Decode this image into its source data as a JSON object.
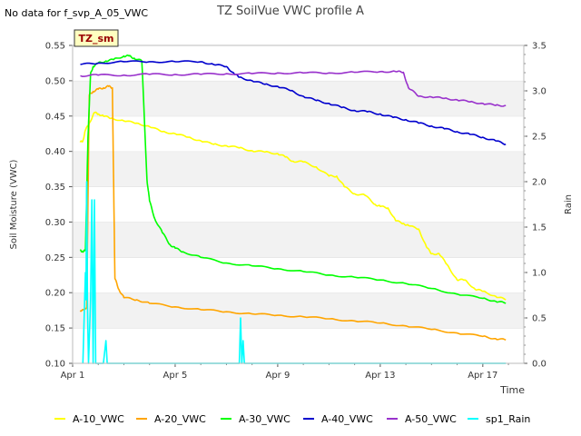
{
  "chart_data": {
    "type": "line",
    "title": "TZ SoilVue VWC profile A",
    "note": "No data for f_svp_A_05_VWC",
    "site_badge": "TZ_sm",
    "xlabel": "Time",
    "ylabel_left": "Soil Moisture (VWC)",
    "ylabel_right": "Rain",
    "xlim": [
      1,
      18.6
    ],
    "ylim_left": [
      0.1,
      0.55
    ],
    "ylim_right": [
      0.0,
      3.5
    ],
    "x_ticks": [
      {
        "value": 1,
        "label": "Apr 1"
      },
      {
        "value": 5,
        "label": "Apr 5"
      },
      {
        "value": 9,
        "label": "Apr 9"
      },
      {
        "value": 13,
        "label": "Apr 13"
      },
      {
        "value": 17,
        "label": "Apr 17"
      }
    ],
    "y_ticks_left": [
      {
        "value": 0.1,
        "label": "0.10"
      },
      {
        "value": 0.15,
        "label": "0.15"
      },
      {
        "value": 0.2,
        "label": "0.20"
      },
      {
        "value": 0.25,
        "label": "0.25"
      },
      {
        "value": 0.3,
        "label": "0.30"
      },
      {
        "value": 0.35,
        "label": "0.35"
      },
      {
        "value": 0.4,
        "label": "0.40"
      },
      {
        "value": 0.45,
        "label": "0.45"
      },
      {
        "value": 0.5,
        "label": "0.50"
      },
      {
        "value": 0.55,
        "label": "0.55"
      }
    ],
    "y_ticks_right": [
      {
        "value": 0.0,
        "label": "0.0"
      },
      {
        "value": 0.5,
        "label": "0.5"
      },
      {
        "value": 1.0,
        "label": "1.0"
      },
      {
        "value": 1.5,
        "label": "1.5"
      },
      {
        "value": 2.0,
        "label": "2.0"
      },
      {
        "value": 2.5,
        "label": "2.5"
      },
      {
        "value": 3.0,
        "label": "3.0"
      },
      {
        "value": 3.5,
        "label": "3.5"
      }
    ],
    "grid": "horizontal bands",
    "legend_position": "bottom",
    "series": [
      {
        "name": "A-10_VWC",
        "color": "#ffff00",
        "axis": "left",
        "x": [
          1.3,
          1.4,
          1.5,
          1.65,
          1.85,
          2.0,
          2.2,
          2.5,
          3.0,
          3.5,
          4.0,
          4.5,
          5.0,
          5.5,
          6.0,
          6.5,
          7.0,
          7.5,
          8.0,
          8.5,
          9.0,
          9.3,
          9.6,
          10.0,
          10.5,
          11.0,
          11.3,
          11.6,
          12.0,
          12.4,
          12.8,
          13.0,
          13.3,
          13.6,
          13.9,
          14.1,
          14.5,
          14.8,
          15.0,
          15.3,
          15.6,
          16.0,
          16.3,
          16.7,
          17.0,
          17.5,
          17.9
        ],
        "values": [
          0.413,
          0.415,
          0.43,
          0.44,
          0.455,
          0.453,
          0.45,
          0.447,
          0.443,
          0.44,
          0.435,
          0.428,
          0.425,
          0.42,
          0.415,
          0.41,
          0.408,
          0.405,
          0.401,
          0.399,
          0.397,
          0.392,
          0.386,
          0.385,
          0.378,
          0.365,
          0.365,
          0.35,
          0.34,
          0.338,
          0.325,
          0.322,
          0.32,
          0.302,
          0.298,
          0.295,
          0.29,
          0.265,
          0.255,
          0.255,
          0.24,
          0.218,
          0.218,
          0.205,
          0.202,
          0.195,
          0.19
        ]
      },
      {
        "name": "A-20_VWC",
        "color": "#ffa500",
        "axis": "left",
        "x": [
          1.3,
          1.45,
          1.55,
          1.65,
          1.8,
          2.0,
          2.2,
          2.4,
          2.55,
          2.65,
          2.8,
          3.0,
          3.5,
          4.0,
          5.0,
          6.0,
          7.0,
          8.0,
          9.0,
          10.0,
          11.0,
          12.0,
          13.0,
          14.0,
          15.0,
          16.0,
          17.0,
          17.5,
          17.9
        ],
        "values": [
          0.175,
          0.175,
          0.18,
          0.48,
          0.485,
          0.488,
          0.49,
          0.492,
          0.49,
          0.22,
          0.205,
          0.193,
          0.19,
          0.185,
          0.18,
          0.176,
          0.173,
          0.17,
          0.168,
          0.166,
          0.163,
          0.16,
          0.157,
          0.153,
          0.148,
          0.143,
          0.138,
          0.135,
          0.133
        ]
      },
      {
        "name": "A-30_VWC",
        "color": "#00ff00",
        "axis": "left",
        "x": [
          1.3,
          1.4,
          1.5,
          1.6,
          1.7,
          1.8,
          2.0,
          2.3,
          2.6,
          3.0,
          3.2,
          3.4,
          3.7,
          3.9,
          4.0,
          4.2,
          4.5,
          4.8,
          5.0,
          5.3,
          6.0,
          7.0,
          8.0,
          9.0,
          10.0,
          11.0,
          12.0,
          13.0,
          14.0,
          15.0,
          16.0,
          17.0,
          17.5,
          17.9
        ],
        "values": [
          0.26,
          0.258,
          0.26,
          0.42,
          0.51,
          0.52,
          0.525,
          0.528,
          0.53,
          0.535,
          0.535,
          0.532,
          0.528,
          0.36,
          0.33,
          0.305,
          0.285,
          0.268,
          0.263,
          0.258,
          0.25,
          0.242,
          0.238,
          0.234,
          0.23,
          0.225,
          0.222,
          0.218,
          0.213,
          0.206,
          0.198,
          0.192,
          0.188,
          0.185
        ]
      },
      {
        "name": "A-40_VWC",
        "color": "#0000cd",
        "axis": "left",
        "x": [
          1.3,
          2.0,
          3.0,
          4.0,
          5.0,
          6.0,
          6.5,
          7.0,
          7.3,
          7.5,
          8.0,
          8.5,
          9.0,
          9.5,
          10.0,
          10.5,
          11.0,
          11.5,
          12.0,
          12.5,
          13.0,
          13.5,
          14.0,
          14.5,
          15.0,
          15.5,
          16.0,
          16.5,
          17.0,
          17.5,
          17.9
        ],
        "values": [
          0.523,
          0.525,
          0.527,
          0.527,
          0.527,
          0.527,
          0.523,
          0.52,
          0.51,
          0.505,
          0.5,
          0.495,
          0.492,
          0.486,
          0.478,
          0.472,
          0.468,
          0.462,
          0.458,
          0.456,
          0.453,
          0.448,
          0.445,
          0.44,
          0.436,
          0.432,
          0.428,
          0.424,
          0.42,
          0.415,
          0.41
        ]
      },
      {
        "name": "A-50_VWC",
        "color": "#9932cc",
        "axis": "left",
        "x": [
          1.3,
          2.0,
          3.0,
          4.0,
          5.0,
          6.0,
          7.0,
          8.0,
          9.0,
          10.0,
          11.0,
          12.0,
          13.0,
          13.6,
          13.9,
          14.1,
          14.5,
          15.0,
          15.5,
          16.0,
          16.5,
          17.0,
          17.5,
          17.9
        ],
        "values": [
          0.507,
          0.508,
          0.508,
          0.509,
          0.509,
          0.509,
          0.51,
          0.51,
          0.511,
          0.511,
          0.511,
          0.512,
          0.513,
          0.513,
          0.512,
          0.49,
          0.478,
          0.477,
          0.475,
          0.473,
          0.47,
          0.468,
          0.465,
          0.465
        ]
      },
      {
        "name": "sp1_Rain",
        "color": "#00ffff",
        "axis": "right",
        "x": [
          1.4,
          1.45,
          1.5,
          1.52,
          1.55,
          1.58,
          1.62,
          1.7,
          1.75,
          1.8,
          1.85,
          1.9,
          2.0,
          2.2,
          2.3,
          2.35,
          2.4,
          2.5,
          3.0,
          4.0,
          5.0,
          6.0,
          7.0,
          7.5,
          7.55,
          7.6,
          7.65,
          7.7,
          8.0,
          9.0,
          10.0,
          11.0,
          12.0,
          13.0,
          14.0,
          15.0,
          16.0,
          17.0,
          17.9
        ],
        "values": [
          0.0,
          0.5,
          1.0,
          0.7,
          2.0,
          0.6,
          0.0,
          0.7,
          1.8,
          0.0,
          1.8,
          0.0,
          0.0,
          0.0,
          0.25,
          0.0,
          0.0,
          0.0,
          0.0,
          0.0,
          0.0,
          0.0,
          0.0,
          0.0,
          0.5,
          0.0,
          0.25,
          0.0,
          0.0,
          0.0,
          0.0,
          0.0,
          0.0,
          0.0,
          0.0,
          0.0,
          0.0,
          0.0,
          0.0
        ]
      }
    ]
  }
}
